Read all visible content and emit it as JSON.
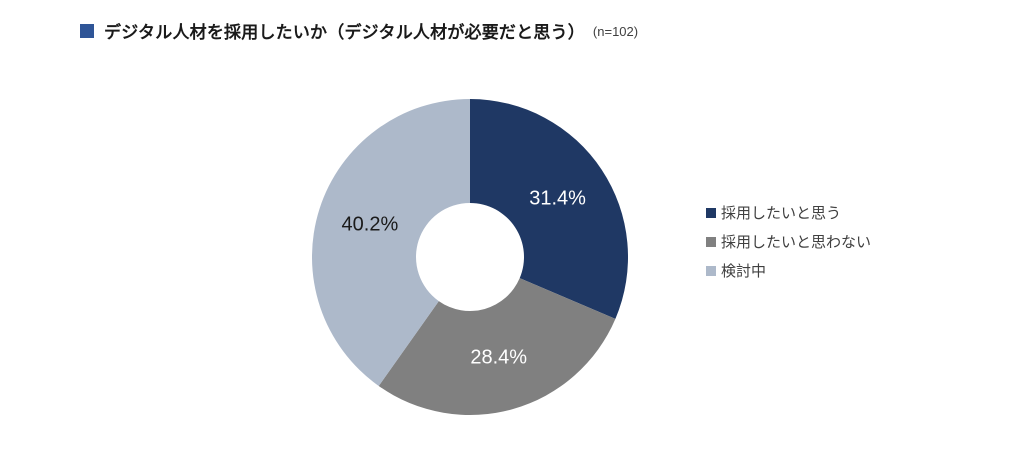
{
  "title": "デジタル人材を採用したいか（デジタル人材が必要だと思う）",
  "n_label": "(n=102)",
  "accent_color": "#2F5597",
  "chart_data": {
    "type": "pie",
    "subtype": "donut",
    "title": "デジタル人材を採用したいか（デジタル人材が必要だと思う）",
    "sample_size_label": "(n=102)",
    "n": 102,
    "start_angle_deg": 0,
    "direction": "clockwise",
    "legend_position": "right",
    "segments": [
      {
        "label": "採用したいと思う",
        "value": 31.4,
        "data_label": "31.4%",
        "color": "#1F3864",
        "label_color": "#FFFFFF"
      },
      {
        "label": "採用したいと思わない",
        "value": 28.4,
        "data_label": "28.4%",
        "color": "#808080",
        "label_color": "#FFFFFF"
      },
      {
        "label": "検討中",
        "value": 40.2,
        "data_label": "40.2%",
        "color": "#ADB9CA",
        "label_color": "#1a1a1a"
      }
    ]
  }
}
